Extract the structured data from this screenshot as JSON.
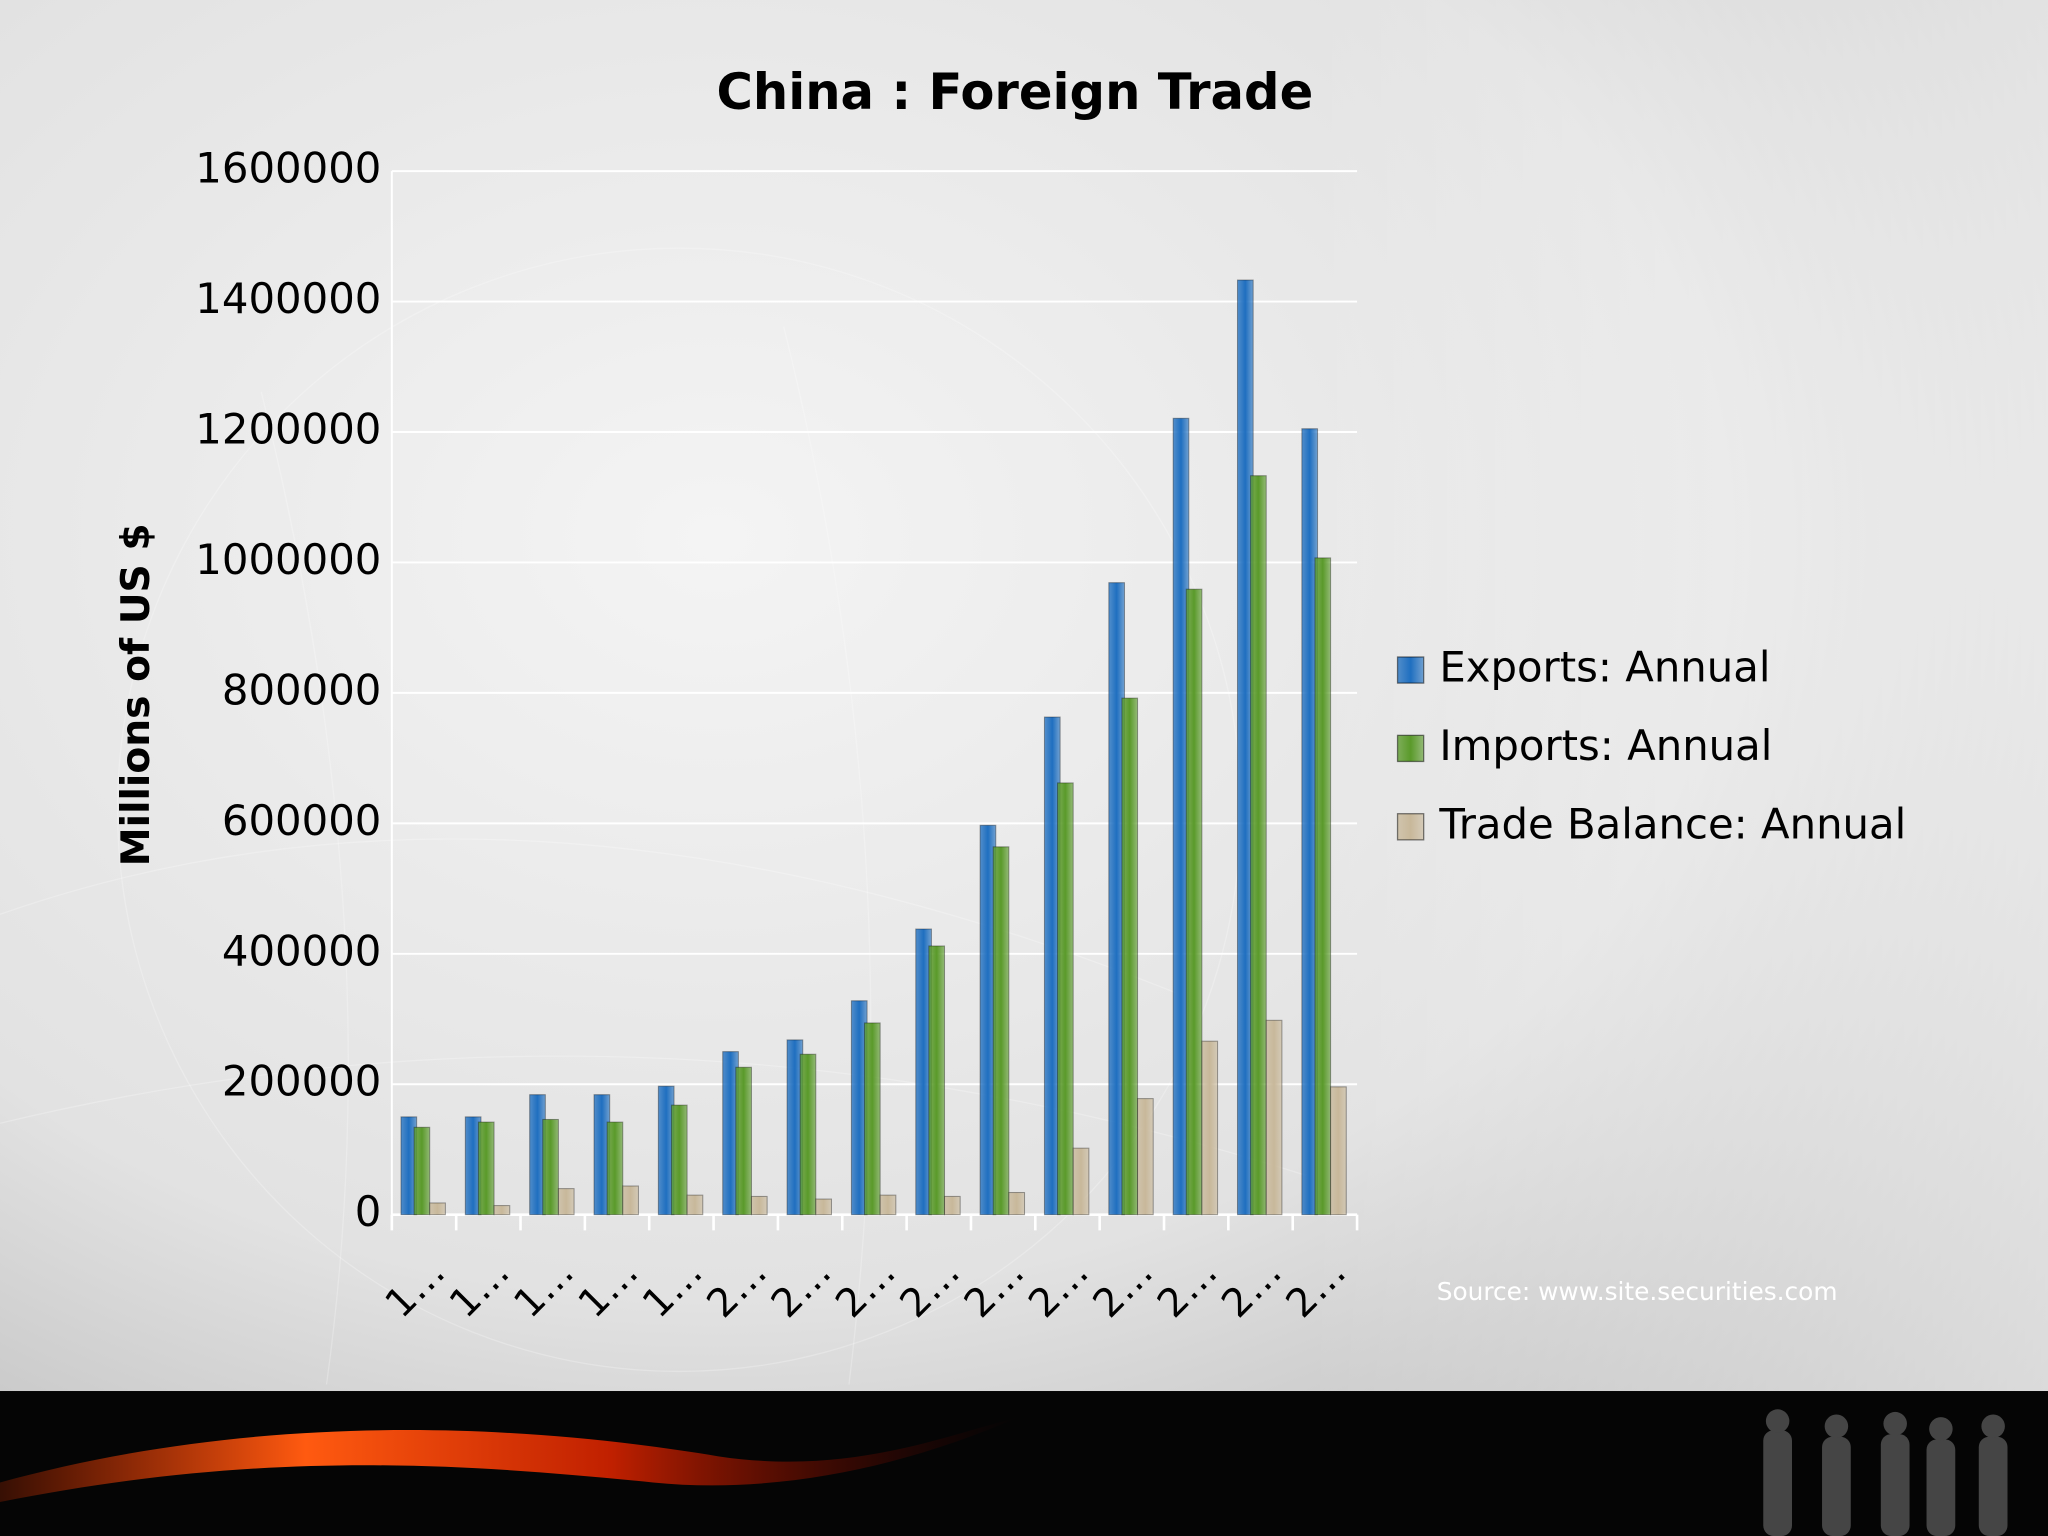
{
  "chart_data": {
    "type": "bar",
    "title": "China : Foreign Trade",
    "y_label": "Millions of US $",
    "source": "Source: www.site.securities.com",
    "categories": [
      "1…",
      "1…",
      "1…",
      "1…",
      "1…",
      "2…",
      "2…",
      "2…",
      "2…",
      "2…",
      "2…",
      "2…",
      "2…",
      "2…",
      "2…"
    ],
    "series": [
      {
        "name": "Exports: Annual",
        "color": "#1f6fc0",
        "values": [
          150000,
          150000,
          184000,
          184000,
          197000,
          250000,
          268000,
          328000,
          438000,
          597000,
          763000,
          969000,
          1221000,
          1433000,
          1205000
        ]
      },
      {
        "name": "Imports: Annual",
        "color": "#5a9a2a",
        "values": [
          134000,
          142000,
          146000,
          142000,
          168000,
          226000,
          246000,
          294000,
          412000,
          564000,
          662000,
          792000,
          959000,
          1133000,
          1007000
        ]
      },
      {
        "name": "Trade Balance: Annual",
        "color": "#c8b89a",
        "values": [
          18000,
          14000,
          40000,
          44000,
          30000,
          28000,
          24000,
          30000,
          28000,
          34000,
          102000,
          178000,
          266000,
          298000,
          196000
        ]
      }
    ],
    "ylim": [
      0,
      1600000
    ],
    "yticks": [
      0,
      200000,
      400000,
      600000,
      800000,
      1000000,
      1200000,
      1400000,
      1600000
    ],
    "grid": true,
    "legend": "right"
  }
}
